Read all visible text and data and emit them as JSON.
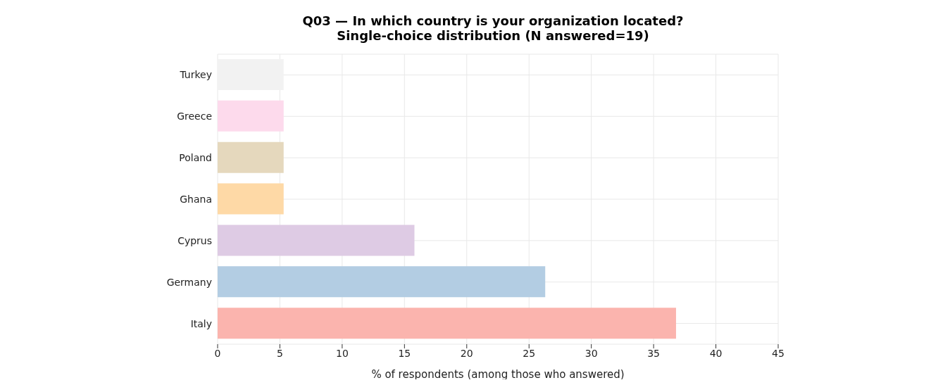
{
  "chart_data": {
    "type": "bar",
    "orientation": "horizontal",
    "title": "Q03 — In which country is your organization located?",
    "subtitle": "Single-choice distribution (N answered=19)",
    "xlabel": "% of respondents (among those who answered)",
    "categories": [
      "Turkey",
      "Greece",
      "Poland",
      "Ghana",
      "Cyprus",
      "Germany",
      "Italy"
    ],
    "values": [
      5.3,
      5.3,
      5.3,
      5.3,
      15.8,
      26.3,
      36.8
    ],
    "colors": [
      "#f2f2f2",
      "#fddaec",
      "#e5d8bd",
      "#fed9a6",
      "#decbe4",
      "#b3cde3",
      "#fbb4ae"
    ],
    "xlim": [
      0,
      45
    ],
    "xticks": [
      0,
      5,
      10,
      15,
      20,
      25,
      30,
      35,
      40,
      45
    ],
    "grid": true
  }
}
